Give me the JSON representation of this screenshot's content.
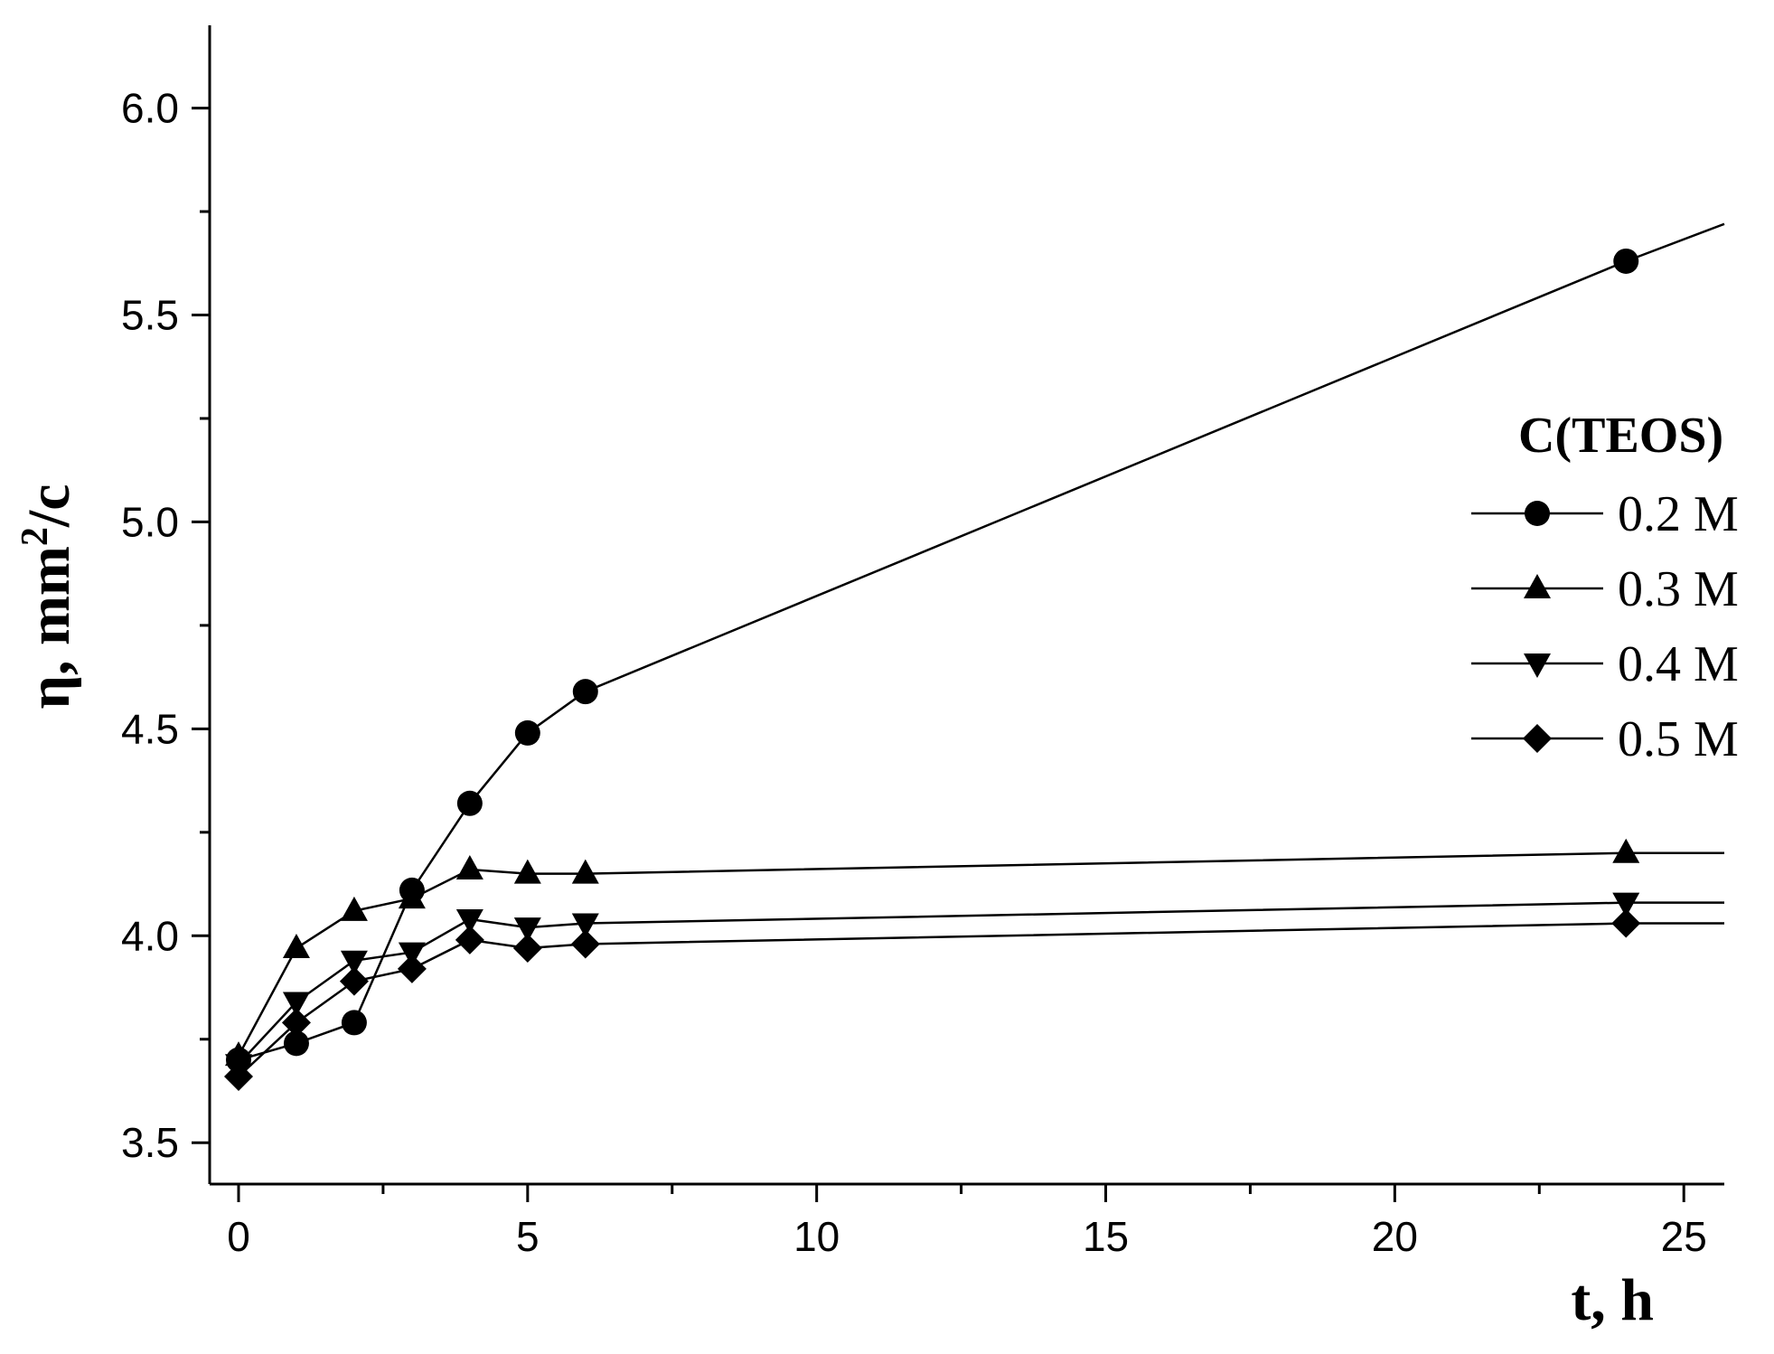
{
  "chart_data": {
    "type": "line",
    "xlabel": "t, h",
    "ylabel_main": "η, mm",
    "ylabel_sup": "2",
    "ylabel_tail": "/c",
    "xlim": [
      -0.5,
      25.7
    ],
    "ylim": [
      3.4,
      6.2
    ],
    "xticks": [
      0,
      5,
      10,
      15,
      20,
      25
    ],
    "xtick_labels": [
      "0",
      "5",
      "10",
      "15",
      "20",
      "25"
    ],
    "yticks": [
      3.5,
      4.0,
      4.5,
      5.0,
      5.5,
      6.0
    ],
    "ytick_labels": [
      "3.5",
      "4.0",
      "4.5",
      "5.0",
      "5.5",
      "6.0"
    ],
    "legend_title": "C(TEOS)",
    "legend_position": "right",
    "grid": false,
    "series": [
      {
        "name": "0.2 M",
        "marker": "circle",
        "x": [
          0,
          1,
          2,
          3,
          4,
          5,
          6,
          24
        ],
        "y": [
          3.7,
          3.74,
          3.79,
          4.11,
          4.32,
          4.49,
          4.59,
          5.63
        ],
        "line_end_y": 5.72
      },
      {
        "name": "0.3 M",
        "marker": "triangle-up",
        "x": [
          0,
          1,
          2,
          3,
          4,
          5,
          6,
          24
        ],
        "y": [
          3.71,
          3.97,
          4.06,
          4.09,
          4.16,
          4.15,
          4.15,
          4.2
        ],
        "line_end_y": 4.2
      },
      {
        "name": "0.4 M",
        "marker": "triangle-down",
        "x": [
          0,
          1,
          2,
          3,
          4,
          5,
          6,
          24
        ],
        "y": [
          3.69,
          3.84,
          3.94,
          3.96,
          4.04,
          4.02,
          4.03,
          4.08
        ],
        "line_end_y": 4.08
      },
      {
        "name": "0.5 M",
        "marker": "diamond",
        "x": [
          0,
          1,
          2,
          3,
          4,
          5,
          6,
          24
        ],
        "y": [
          3.66,
          3.79,
          3.89,
          3.92,
          3.99,
          3.97,
          3.98,
          4.03
        ],
        "line_end_y": 4.03
      }
    ]
  }
}
